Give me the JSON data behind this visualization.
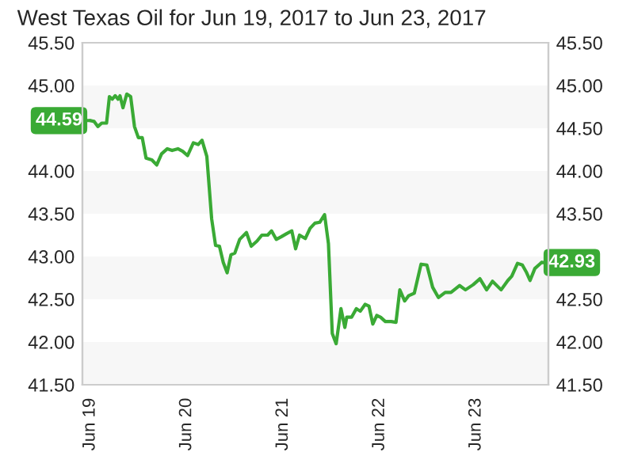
{
  "chart_data": {
    "type": "line",
    "title": "West Texas Oil for Jun 19, 2017 to Jun 23, 2017",
    "x": [
      "2017-06-19T00:00",
      "2017-06-19T00:58",
      "2017-06-19T01:55",
      "2017-06-19T02:53",
      "2017-06-19T04:05",
      "2017-06-19T04:48",
      "2017-06-19T05:31",
      "2017-06-19T06:14",
      "2017-06-19T06:58",
      "2017-06-19T07:26",
      "2017-06-19T08:10",
      "2017-06-19T09:07",
      "2017-06-19T10:05",
      "2017-06-19T11:02",
      "2017-06-19T12:00",
      "2017-06-19T12:58",
      "2017-06-19T13:55",
      "2017-06-19T15:22",
      "2017-06-19T16:34",
      "2017-06-19T17:46",
      "2017-06-19T19:12",
      "2017-06-19T20:24",
      "2017-06-19T21:50",
      "2017-06-19T23:02",
      "2017-06-20T00:14",
      "2017-06-20T01:41",
      "2017-06-20T02:53",
      "2017-06-20T03:50",
      "2017-06-20T05:02",
      "2017-06-20T06:14",
      "2017-06-20T07:12",
      "2017-06-20T08:10",
      "2017-06-20T09:07",
      "2017-06-20T10:05",
      "2017-06-20T11:02",
      "2017-06-20T12:00",
      "2017-06-20T13:12",
      "2017-06-20T14:53",
      "2017-06-20T16:05",
      "2017-06-20T17:31",
      "2017-06-20T18:43",
      "2017-06-20T20:10",
      "2017-06-20T21:07",
      "2017-06-20T22:19",
      "2017-06-20T23:31",
      "2017-06-21T00:58",
      "2017-06-21T02:10",
      "2017-06-21T03:07",
      "2017-06-21T04:05",
      "2017-06-21T05:31",
      "2017-06-21T06:43",
      "2017-06-21T07:55",
      "2017-06-21T09:07",
      "2017-06-21T10:19",
      "2017-06-21T11:17",
      "2017-06-21T12:14",
      "2017-06-21T13:12",
      "2017-06-21T14:24",
      "2017-06-21T15:22",
      "2017-06-21T15:50",
      "2017-06-21T17:02",
      "2017-06-21T18:14",
      "2017-06-21T19:12",
      "2017-06-21T20:24",
      "2017-06-21T21:22",
      "2017-06-21T22:19",
      "2017-06-21T23:17",
      "2017-06-22T00:14",
      "2017-06-22T01:26",
      "2017-06-22T02:53",
      "2017-06-22T04:05",
      "2017-06-22T05:02",
      "2017-06-22T06:14",
      "2017-06-22T07:12",
      "2017-06-22T08:38",
      "2017-06-22T10:19",
      "2017-06-22T11:46",
      "2017-06-22T13:12",
      "2017-06-22T14:38",
      "2017-06-22T16:19",
      "2017-06-22T17:46",
      "2017-06-22T19:55",
      "2017-06-22T21:22",
      "2017-06-22T23:17",
      "2017-06-23T00:58",
      "2017-06-23T02:38",
      "2017-06-23T04:05",
      "2017-06-23T06:14",
      "2017-06-23T07:55",
      "2017-06-23T08:53",
      "2017-06-23T10:19",
      "2017-06-23T11:31",
      "2017-06-23T12:29",
      "2017-06-23T13:26",
      "2017-06-23T14:38",
      "2017-06-23T16:19"
    ],
    "series": [
      {
        "color": "#3aaa35",
        "values": [
          44.59,
          44.58,
          44.52,
          44.56,
          44.56,
          44.87,
          44.84,
          44.88,
          44.84,
          44.88,
          44.74,
          44.9,
          44.87,
          44.52,
          44.39,
          44.39,
          44.15,
          44.13,
          44.07,
          44.2,
          44.26,
          44.24,
          44.26,
          44.23,
          44.18,
          44.33,
          44.31,
          44.36,
          44.17,
          43.44,
          43.13,
          43.12,
          42.93,
          42.81,
          43.02,
          43.04,
          43.2,
          43.28,
          43.12,
          43.18,
          43.25,
          43.25,
          43.3,
          43.2,
          43.23,
          43.27,
          43.3,
          43.09,
          43.25,
          43.21,
          43.33,
          43.39,
          43.4,
          43.49,
          43.15,
          42.1,
          41.98,
          42.39,
          42.17,
          42.29,
          42.29,
          42.39,
          42.36,
          42.44,
          42.42,
          42.21,
          42.31,
          42.29,
          42.24,
          42.24,
          42.23,
          42.61,
          42.48,
          42.54,
          42.57,
          42.91,
          42.9,
          42.64,
          42.52,
          42.58,
          42.58,
          42.66,
          42.61,
          42.67,
          42.74,
          42.61,
          42.71,
          42.61,
          42.72,
          42.77,
          42.92,
          42.9,
          42.82,
          42.72,
          42.86,
          42.93
        ]
      }
    ],
    "xlim": [
      "2017-06-18T22:05",
      "2017-06-23T18:00"
    ],
    "xticks": [
      {
        "value": "2017-06-19",
        "label": "Jun 19"
      },
      {
        "value": "2017-06-20",
        "label": "Jun 20"
      },
      {
        "value": "2017-06-21",
        "label": "Jun 21"
      },
      {
        "value": "2017-06-22",
        "label": "Jun 22"
      },
      {
        "value": "2017-06-23",
        "label": "Jun 23"
      }
    ],
    "ylim": [
      41.5,
      45.5
    ],
    "yticks": [
      {
        "value": 41.5,
        "label": "41.50"
      },
      {
        "value": 42,
        "label": "42.00"
      },
      {
        "value": 42.5,
        "label": "42.50"
      },
      {
        "value": 43,
        "label": "43.00"
      },
      {
        "value": 43.5,
        "label": "43.50"
      },
      {
        "value": 44,
        "label": "44.00"
      },
      {
        "value": 45,
        "label": "45.00"
      },
      {
        "value": 45.5,
        "label": "45.50"
      }
    ],
    "y2lim": [
      41.5,
      45.5
    ],
    "y2ticks": [
      {
        "value": 41.5,
        "label": "41.50"
      },
      {
        "value": 42,
        "label": "42.00"
      },
      {
        "value": 42.5,
        "label": "42.50"
      },
      {
        "value": 43.5,
        "label": "43.50"
      },
      {
        "value": 44,
        "label": "44.00"
      },
      {
        "value": 44.5,
        "label": "44.50"
      },
      {
        "value": 45,
        "label": "45.00"
      },
      {
        "value": 45.5,
        "label": "45.50"
      }
    ],
    "bands": [
      {
        "axis": "y",
        "from": 41.5,
        "to": 42,
        "color": "#f7f7f7"
      },
      {
        "axis": "y",
        "from": 42.5,
        "to": 43,
        "color": "#f7f7f7"
      },
      {
        "axis": "y",
        "from": 43.5,
        "to": 44,
        "color": "#f7f7f7"
      },
      {
        "axis": "y",
        "from": 44.5,
        "to": 45,
        "color": "#f7f7f7"
      }
    ],
    "annotations": [
      {
        "text": "44.59",
        "x": "2017-06-19T00:00",
        "y": 44.59
      },
      {
        "text": "42.93",
        "x": "2017-06-23T16:19",
        "y": 42.93
      }
    ],
    "grid": false,
    "legend": false
  }
}
